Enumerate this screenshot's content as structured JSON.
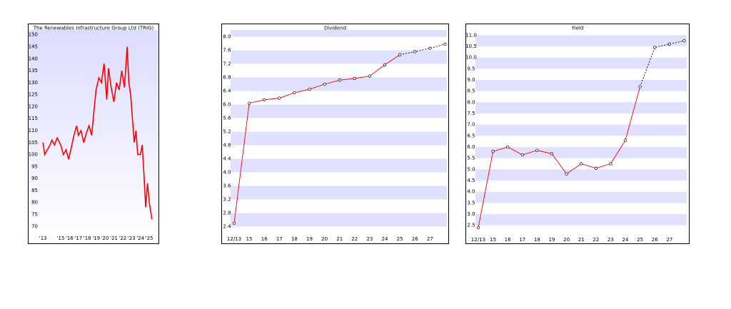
{
  "chart_data": [
    {
      "type": "line",
      "title": "The Renewables Infrastructure Group Ltd (TRIG)",
      "x": [
        2013.0,
        2013.2,
        2013.5,
        2013.8,
        2014.0,
        2014.3,
        2014.6,
        2015.0,
        2015.3,
        2015.6,
        2015.9,
        2016.2,
        2016.5,
        2016.8,
        2017.0,
        2017.3,
        2017.6,
        2017.9,
        2018.2,
        2018.5,
        2018.8,
        2019.0,
        2019.3,
        2019.6,
        2019.9,
        2020.2,
        2020.4,
        2020.7,
        2021.0,
        2021.3,
        2021.6,
        2021.9,
        2022.2,
        2022.5,
        2022.7,
        2022.9,
        2023.1,
        2023.3,
        2023.5,
        2023.7,
        2024.0,
        2024.2,
        2024.4,
        2024.6,
        2024.8,
        2025.0,
        2025.3
      ],
      "values": [
        105,
        100,
        102,
        104,
        106,
        104,
        107,
        104,
        100,
        102,
        98,
        103,
        108,
        112,
        108,
        110,
        105,
        109,
        112,
        108,
        120,
        127,
        132,
        130,
        138,
        123,
        136,
        128,
        122,
        130,
        127,
        135,
        128,
        145,
        130,
        125,
        115,
        105,
        110,
        100,
        100,
        104,
        92,
        78,
        88,
        80,
        73
      ],
      "color": "#ff0000",
      "xlim": [
        2012.5,
        2025.8
      ],
      "xticks": [
        {
          "value": 2013,
          "label": "'13"
        },
        {
          "value": 2015,
          "label": "'15"
        },
        {
          "value": 2016,
          "label": "'16"
        },
        {
          "value": 2017,
          "label": "'17"
        },
        {
          "value": 2018,
          "label": "'18"
        },
        {
          "value": 2019,
          "label": "'19"
        },
        {
          "value": 2020,
          "label": "'20"
        },
        {
          "value": 2021,
          "label": "'21"
        },
        {
          "value": 2022,
          "label": "'22"
        },
        {
          "value": 2023,
          "label": "'23"
        },
        {
          "value": 2024,
          "label": "'24"
        },
        {
          "value": 2025,
          "label": "'25"
        }
      ],
      "ylim": [
        68,
        152
      ],
      "yticks": [
        70,
        75,
        80,
        85,
        90,
        95,
        100,
        105,
        110,
        115,
        120,
        125,
        130,
        135,
        140,
        145,
        150
      ],
      "background_gradient": [
        "#dcdcff",
        "#ffffff"
      ]
    },
    {
      "type": "line",
      "title": "Dividend",
      "categories": [
        "12/13",
        "15",
        "16",
        "17",
        "18",
        "19",
        "20",
        "21",
        "22",
        "23",
        "24",
        "25",
        "26",
        "27",
        null
      ],
      "values": [
        2.5,
        6.04,
        6.14,
        6.19,
        6.35,
        6.45,
        6.6,
        6.72,
        6.77,
        6.84,
        7.17,
        7.47,
        7.56,
        7.66,
        7.78
      ],
      "color": "#ee0000",
      "dashed_from": 11,
      "dashed_color": "#000000",
      "ylim": [
        2.2,
        8.2
      ],
      "yticks": [
        2.4,
        2.8,
        3.2,
        3.6,
        {
          "value": 4,
          "label": "4.0"
        },
        4.4,
        4.8,
        5.2,
        5.6,
        {
          "value": 6,
          "label": "6.0"
        },
        6.4,
        6.8,
        7.2,
        7.6,
        {
          "value": 8,
          "label": "8.0"
        }
      ],
      "bands": true,
      "band_color": "#e0e0ff"
    },
    {
      "type": "line",
      "title": "Yield",
      "categories": [
        "12/13",
        "15",
        "16",
        "17",
        "18",
        "19",
        "20",
        "21",
        "22",
        "23",
        "24",
        "25",
        "26",
        "27",
        null
      ],
      "values": [
        2.4,
        5.8,
        6.0,
        5.65,
        5.85,
        5.7,
        4.8,
        5.25,
        5.05,
        5.25,
        6.3,
        8.7,
        10.45,
        10.6,
        10.75
      ],
      "color": "#ee0000",
      "dashed_from": 11,
      "dashed_color": "#000000",
      "ylim": [
        2.3,
        11.2
      ],
      "yticks": [
        2.5,
        {
          "value": 3,
          "label": "3.0"
        },
        3.5,
        {
          "value": 4,
          "label": "4.0"
        },
        4.5,
        {
          "value": 5,
          "label": "5.0"
        },
        5.5,
        {
          "value": 6,
          "label": "6.0"
        },
        6.5,
        {
          "value": 7,
          "label": "7.0"
        },
        7.5,
        {
          "value": 8,
          "label": "8.0"
        },
        8.5,
        {
          "value": 9,
          "label": "9.0"
        },
        9.5,
        {
          "value": 10,
          "label": "10.0"
        },
        10.5,
        {
          "value": 11,
          "label": "11.0"
        }
      ],
      "bands": true,
      "band_color": "#e0e0ff"
    }
  ]
}
